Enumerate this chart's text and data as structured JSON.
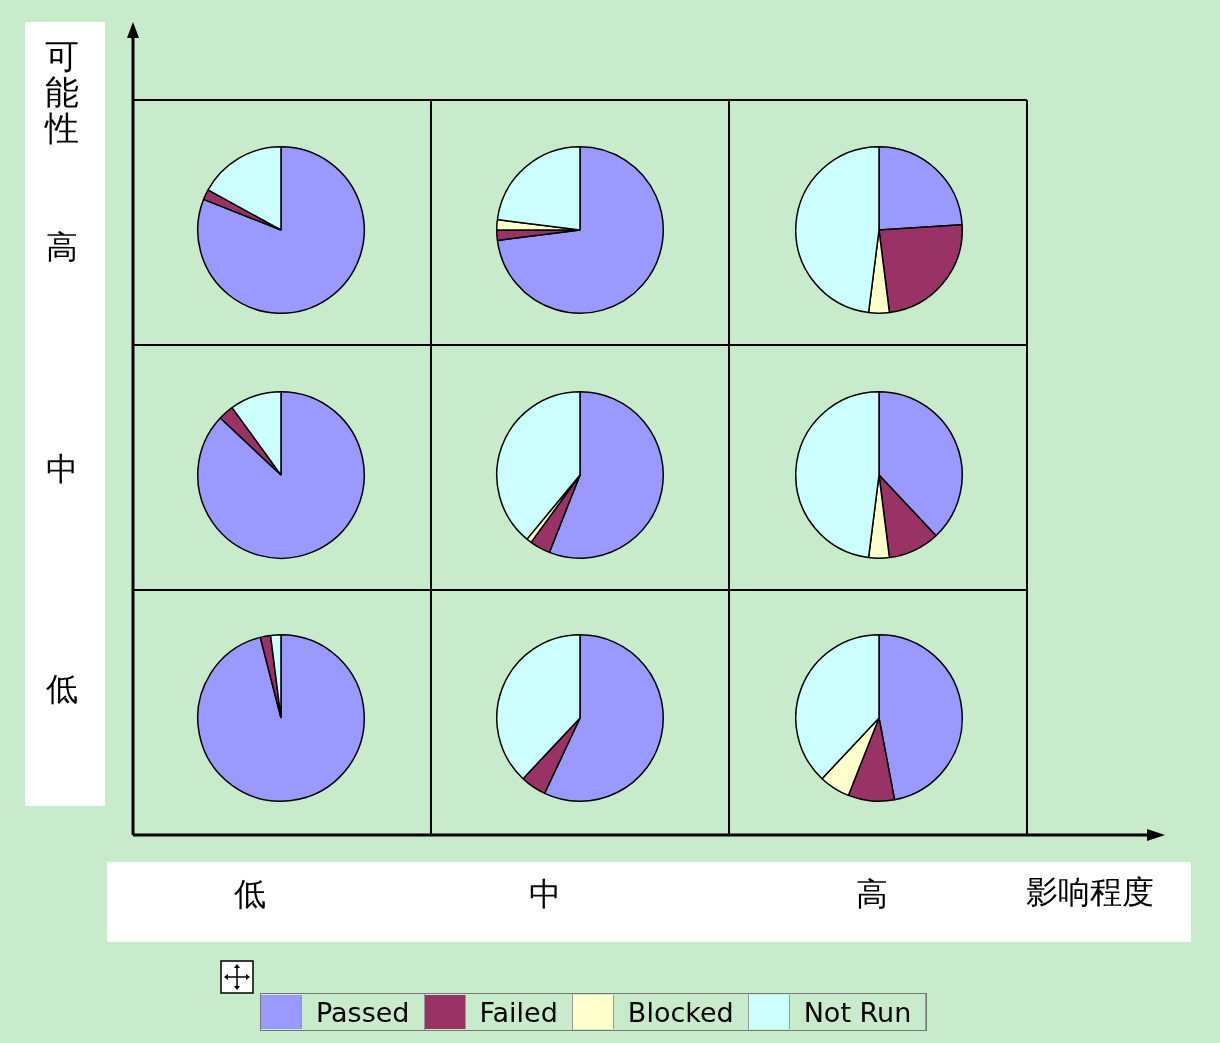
{
  "chart_data": [
    {
      "type": "pie",
      "categories": [
        "Passed",
        "Failed",
        "Blocked",
        "Not Run"
      ],
      "values": [
        81,
        2,
        0,
        17
      ],
      "colors": [
        "#9999ff",
        "#993366",
        "#ffffcc",
        "#ccffff"
      ],
      "legend": "bottom"
    },
    {
      "type": "pie",
      "categories": [
        null,
        null,
        null,
        null
      ],
      "values": [
        73,
        2,
        2,
        23
      ],
      "colors": [
        "#9999ff",
        "#993366",
        "#ffffcc",
        "#ccffff"
      ]
    },
    {
      "type": "pie",
      "categories": [
        null,
        null,
        null,
        null
      ],
      "values": [
        24,
        24,
        4,
        48
      ],
      "colors": [
        "#9999ff",
        "#993366",
        "#ffffcc",
        "#ccffff"
      ]
    },
    {
      "type": "pie",
      "categories": [
        null,
        null,
        null,
        null
      ],
      "values": [
        87,
        3,
        0,
        10
      ],
      "colors": [
        "#9999ff",
        "#993366",
        "#ffffcc",
        "#ccffff"
      ]
    },
    {
      "type": "pie",
      "categories": [
        null,
        null,
        null,
        null
      ],
      "values": [
        56,
        4,
        1,
        39
      ],
      "colors": [
        "#9999ff",
        "#993366",
        "#ffffcc",
        "#ccffff"
      ]
    },
    {
      "type": "pie",
      "categories": [
        null,
        null,
        null,
        null
      ],
      "values": [
        38,
        10,
        4,
        48
      ],
      "colors": [
        "#9999ff",
        "#993366",
        "#ffffcc",
        "#ccffff"
      ]
    },
    {
      "type": "pie",
      "categories": [
        null,
        null,
        null,
        null
      ],
      "values": [
        96,
        2,
        0,
        2
      ],
      "colors": [
        "#9999ff",
        "#993366",
        "#ffffcc",
        "#ccffff"
      ]
    },
    {
      "type": "pie",
      "categories": [
        null,
        null,
        null,
        null
      ],
      "values": [
        57,
        5,
        0,
        38
      ],
      "colors": [
        "#9999ff",
        "#993366",
        "#ffffcc",
        "#ccffff"
      ]
    },
    {
      "type": "pie",
      "categories": [
        null,
        null,
        null,
        null
      ],
      "values": [
        47,
        9,
        6,
        38
      ],
      "colors": [
        "#9999ff",
        "#993366",
        "#ffffcc",
        "#ccffff"
      ]
    },
    {
      "type": "other",
      "ylabel": "可能性",
      "xlabel": "影响程度",
      "annotations": [
        "高",
        "中",
        "低",
        "低",
        "中",
        "高"
      ]
    }
  ]
}
